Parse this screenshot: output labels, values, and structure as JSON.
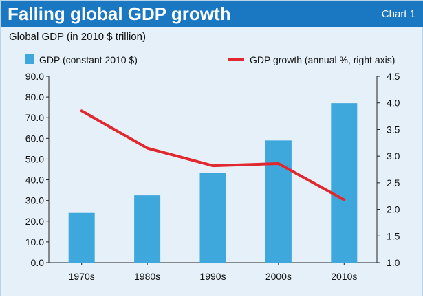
{
  "header": {
    "title": "Falling global GDP growth",
    "chart_label": "Chart 1"
  },
  "colors": {
    "header_bg": "#1a78c2",
    "bar": "#3ea8dd",
    "line": "#e0282e",
    "background": "#e6f0f8"
  },
  "chart_data": {
    "type": "bar",
    "title": "Falling global GDP growth",
    "subtitle": "Global GDP  (in 2010 $  trillion)",
    "categories": [
      "1970s",
      "1980s",
      "1990s",
      "2000s",
      "2010s"
    ],
    "series": [
      {
        "name": "GDP (constant 2010 $)",
        "type": "bar",
        "axis": "left",
        "values": [
          24.0,
          32.5,
          43.5,
          59.0,
          77.0
        ]
      },
      {
        "name": "GDP growth (annual %, right axis)",
        "type": "line",
        "axis": "right",
        "values": [
          3.85,
          3.15,
          2.82,
          2.86,
          2.18
        ]
      }
    ],
    "y_left": {
      "min": 0,
      "max": 90,
      "ticks": [
        "0.0",
        "10.0",
        "20.0",
        "30.0",
        "40.0",
        "50.0",
        "60.0",
        "70.0",
        "80.0",
        "90.0"
      ]
    },
    "y_right": {
      "min": 1.0,
      "max": 4.5,
      "ticks": [
        "1.0",
        "1.5",
        "2.0",
        "2.5",
        "3.0",
        "3.5",
        "4.0",
        "4.5"
      ]
    },
    "legend": {
      "bar_label": "GDP (constant 2010 $)",
      "line_label": "GDP growth (annual %, right axis)"
    },
    "grid": false
  }
}
